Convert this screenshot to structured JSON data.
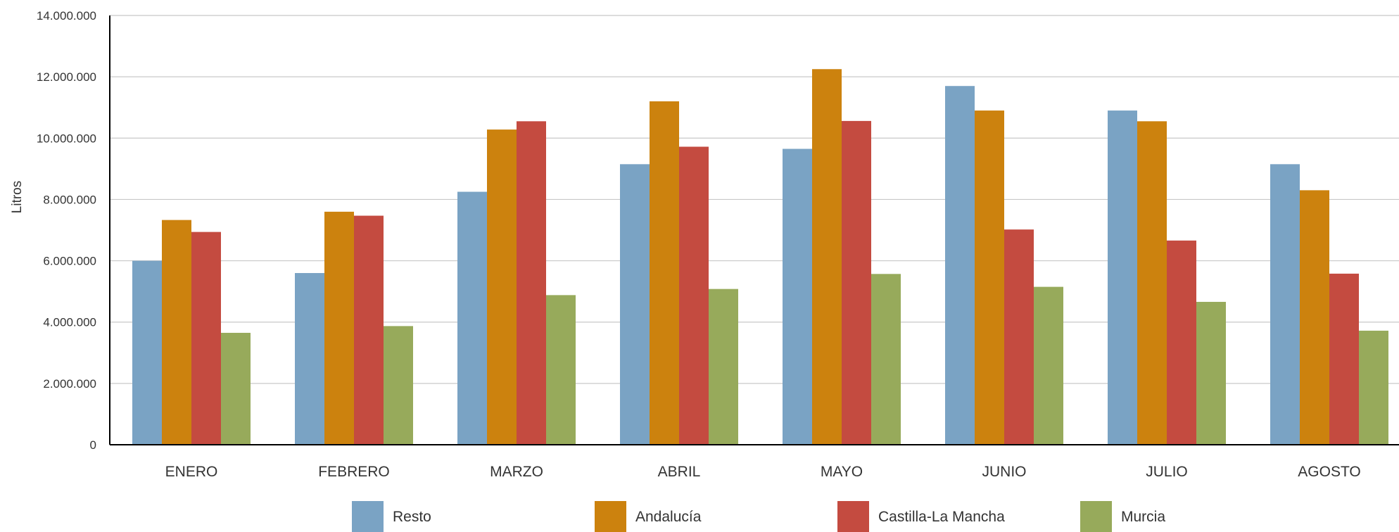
{
  "chart_data": {
    "type": "bar",
    "ylabel": "Litros",
    "xlabel": "",
    "ylim": [
      0,
      14000000
    ],
    "yticks": [
      0,
      2000000,
      4000000,
      6000000,
      8000000,
      10000000,
      12000000,
      14000000
    ],
    "ytick_labels": [
      "0",
      "2.000.000",
      "4.000.000",
      "6.000.000",
      "8.000.000",
      "10.000.000",
      "12.000.000",
      "14.000.000"
    ],
    "grid": true,
    "legend_position": "bottom",
    "categories": [
      "ENERO",
      "FEBRERO",
      "MARZO",
      "ABRIL",
      "MAYO",
      "JUNIO",
      "JULIO",
      "AGOSTO"
    ],
    "series": [
      {
        "name": "Resto",
        "color": "#7aa3c4",
        "values": [
          6000000,
          5600000,
          8250000,
          9150000,
          9650000,
          11700000,
          10900000,
          9150000
        ]
      },
      {
        "name": "Andalucía",
        "color": "#cc820e",
        "values": [
          7330000,
          7600000,
          10280000,
          11200000,
          12250000,
          10900000,
          10550000,
          8300000
        ]
      },
      {
        "name": "Castilla-La Mancha",
        "color": "#c44b40",
        "values": [
          6940000,
          7470000,
          10550000,
          9720000,
          10560000,
          7020000,
          6660000,
          5580000
        ]
      },
      {
        "name": "Murcia",
        "color": "#97aa5b",
        "values": [
          3650000,
          3870000,
          4880000,
          5080000,
          5570000,
          5150000,
          4660000,
          3720000
        ]
      }
    ]
  }
}
